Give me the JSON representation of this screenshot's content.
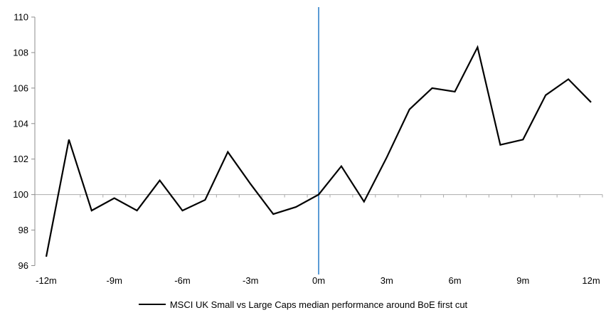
{
  "chart_data": {
    "type": "line",
    "title": "",
    "legend": "MSCI UK Small vs Large Caps median performance around BoE first cut",
    "xlabel": "",
    "ylabel": "",
    "x_unit": "months relative to BoE first cut",
    "x": [
      -12,
      -11,
      -10,
      -9,
      -8,
      -7,
      -6,
      -5,
      -4,
      -3,
      -2,
      -1,
      0,
      1,
      2,
      3,
      4,
      5,
      6,
      7,
      8,
      9,
      10,
      11,
      12
    ],
    "x_tick_labels": [
      "-12m",
      "-9m",
      "-6m",
      "-3m",
      "0m",
      "3m",
      "6m",
      "9m",
      "12m"
    ],
    "x_tick_every": 3,
    "series": [
      {
        "name": "MSCI UK Small vs Large Caps median performance around BoE first cut",
        "values": [
          96.5,
          103.1,
          99.1,
          99.8,
          99.1,
          100.8,
          99.1,
          99.7,
          102.4,
          100.6,
          98.9,
          99.3,
          100.0,
          101.6,
          99.6,
          102.1,
          104.8,
          106.0,
          105.8,
          108.3,
          102.8,
          103.1,
          105.6,
          106.5,
          105.2
        ]
      }
    ],
    "ylim": [
      96,
      110
    ],
    "y_tick_step": 2,
    "y_tick_labels": [
      "96",
      "98",
      "100",
      "102",
      "104",
      "106",
      "108",
      "110"
    ],
    "baseline_value": 100,
    "event_line_at_x": 0,
    "grid": "off",
    "legend_position": "bottom-center",
    "colors": {
      "series": "#000000",
      "event_line": "#5B9BD5",
      "baseline_axis": "#ABABAB",
      "y_axis": "#8C8C8C",
      "text": "#000000",
      "background": "#FFFFFF"
    }
  }
}
